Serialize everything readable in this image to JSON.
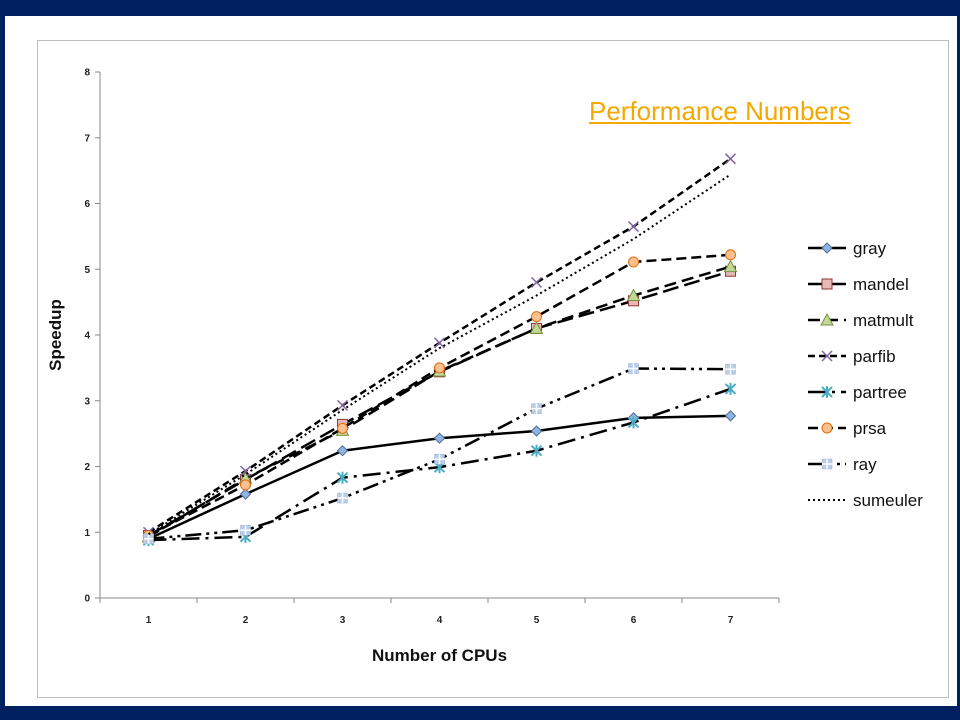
{
  "slide": {
    "title": "Performance Numbers"
  },
  "chart_data": {
    "type": "line",
    "title": "",
    "xlabel": "Number of CPUs",
    "ylabel": "Speedup",
    "x": [
      1,
      2,
      3,
      4,
      5,
      6,
      7
    ],
    "xticks": [
      "1",
      "2",
      "3",
      "4",
      "5",
      "6",
      "7"
    ],
    "yticks": [
      "0",
      "1",
      "2",
      "3",
      "4",
      "5",
      "6",
      "7",
      "8"
    ],
    "ylim": [
      0,
      8
    ],
    "xlim": [
      0.5,
      7.5
    ],
    "grid": false,
    "legend": "right",
    "series": [
      {
        "name": "gray",
        "values": [
          0.9,
          1.58,
          2.24,
          2.43,
          2.54,
          2.74,
          2.77
        ],
        "dash": "",
        "marker": "diamond",
        "color": "#8fb4e3"
      },
      {
        "name": "mandel",
        "values": [
          0.95,
          1.8,
          2.64,
          3.44,
          4.1,
          4.52,
          4.97
        ],
        "dash": "16,6",
        "marker": "square",
        "color": "#e6b8b7"
      },
      {
        "name": "matmult",
        "values": [
          0.93,
          1.82,
          2.55,
          3.45,
          4.1,
          4.6,
          5.04
        ],
        "dash": "12,6",
        "marker": "triangle",
        "color": "#c4d79b"
      },
      {
        "name": "parfib",
        "values": [
          1.0,
          1.93,
          2.93,
          3.88,
          4.8,
          5.65,
          6.68
        ],
        "dash": "7,4",
        "marker": "x",
        "color": "#8064a2"
      },
      {
        "name": "partree",
        "values": [
          0.88,
          0.93,
          1.83,
          1.99,
          2.24,
          2.67,
          3.18
        ],
        "dash": "18,6,3,6",
        "marker": "star",
        "color": "#4bacc6"
      },
      {
        "name": "prsa",
        "values": [
          0.95,
          1.72,
          2.58,
          3.5,
          4.28,
          5.11,
          5.22
        ],
        "dash": "10,5",
        "marker": "circle",
        "color": "#fac090"
      },
      {
        "name": "ray",
        "values": [
          0.9,
          1.03,
          1.52,
          2.11,
          2.88,
          3.49,
          3.48
        ],
        "dash": "16,5,3,5,3,5",
        "marker": "plus",
        "color": "#b9cde5"
      },
      {
        "name": "sumeuler",
        "values": [
          0.97,
          1.88,
          2.86,
          3.8,
          4.6,
          5.46,
          6.44
        ],
        "dash": "2,3",
        "marker": "none",
        "color": "#000000"
      }
    ]
  }
}
